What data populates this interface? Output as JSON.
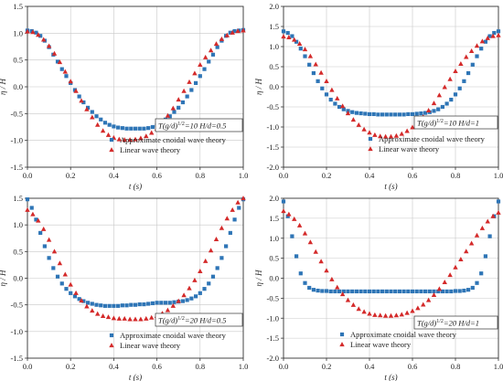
{
  "chart_data": [
    {
      "type": "scatter",
      "xlabel": "t (s)",
      "ylabel": "η / H",
      "xlim": [
        0.0,
        1.0
      ],
      "ylim": [
        -1.5,
        1.5
      ],
      "xticks": [
        "0.0",
        "0.2",
        "0.4",
        "0.6",
        "0.8",
        "1.0"
      ],
      "yticks": [
        "1.5",
        "1.0",
        "0.5",
        "0.0",
        "-0.5",
        "-1.0",
        "-1.5"
      ],
      "grid": true,
      "annotation": "T(g/d)1/2=10 H/d=0.5",
      "annotation_parts": [
        "T(g/d)",
        "1/2",
        "=10  H/d=0.5"
      ],
      "legend_position": "bottom-right",
      "series": [
        {
          "name": "Approximate cnoidal wave theory",
          "marker": "square",
          "color": "#2e75b6",
          "x": [
            0.0,
            0.02,
            0.04,
            0.06,
            0.08,
            0.1,
            0.12,
            0.14,
            0.16,
            0.18,
            0.2,
            0.22,
            0.24,
            0.26,
            0.28,
            0.3,
            0.32,
            0.34,
            0.36,
            0.38,
            0.4,
            0.42,
            0.44,
            0.46,
            0.48,
            0.5,
            0.52,
            0.54,
            0.56,
            0.58,
            0.6,
            0.62,
            0.64,
            0.66,
            0.68,
            0.7,
            0.72,
            0.74,
            0.76,
            0.78,
            0.8,
            0.82,
            0.84,
            0.86,
            0.88,
            0.9,
            0.92,
            0.94,
            0.96,
            0.98,
            1.0
          ],
          "y": [
            1.05,
            1.04,
            1.01,
            0.95,
            0.86,
            0.74,
            0.6,
            0.47,
            0.33,
            0.2,
            0.07,
            -0.06,
            -0.18,
            -0.29,
            -0.39,
            -0.47,
            -0.55,
            -0.61,
            -0.67,
            -0.71,
            -0.74,
            -0.76,
            -0.77,
            -0.78,
            -0.78,
            -0.78,
            -0.78,
            -0.78,
            -0.77,
            -0.75,
            -0.72,
            -0.67,
            -0.61,
            -0.55,
            -0.47,
            -0.39,
            -0.29,
            -0.18,
            -0.06,
            0.07,
            0.2,
            0.33,
            0.47,
            0.6,
            0.74,
            0.86,
            0.95,
            1.01,
            1.04,
            1.05,
            1.06
          ]
        },
        {
          "name": "Linear wave theory",
          "marker": "triangle",
          "color": "#d42a2a",
          "x": [
            0.0,
            0.025,
            0.05,
            0.075,
            0.1,
            0.125,
            0.15,
            0.175,
            0.2,
            0.225,
            0.25,
            0.275,
            0.3,
            0.325,
            0.35,
            0.375,
            0.4,
            0.425,
            0.45,
            0.475,
            0.5,
            0.525,
            0.55,
            0.575,
            0.6,
            0.625,
            0.65,
            0.675,
            0.7,
            0.725,
            0.75,
            0.775,
            0.8,
            0.825,
            0.85,
            0.875,
            0.9,
            0.925,
            0.95,
            0.975,
            1.0
          ],
          "y": [
            1.03,
            1.02,
            0.97,
            0.88,
            0.76,
            0.62,
            0.46,
            0.28,
            0.1,
            -0.08,
            -0.26,
            -0.42,
            -0.57,
            -0.71,
            -0.82,
            -0.9,
            -0.95,
            -0.98,
            -0.99,
            -0.99,
            -0.98,
            -0.96,
            -0.92,
            -0.86,
            -0.78,
            -0.67,
            -0.54,
            -0.4,
            -0.24,
            -0.08,
            0.09,
            0.25,
            0.41,
            0.55,
            0.68,
            0.8,
            0.89,
            0.96,
            1.01,
            1.04,
            1.05
          ]
        }
      ]
    },
    {
      "type": "scatter",
      "xlabel": "t (s)",
      "ylabel": "η / H",
      "xlim": [
        0.0,
        1.0
      ],
      "ylim": [
        -2.0,
        2.0
      ],
      "xticks": [
        "0.0",
        "0.2",
        "0.4",
        "0.6",
        "0.8",
        "1.0"
      ],
      "yticks": [
        "2.0",
        "1.5",
        "1.0",
        "0.5",
        "0.0",
        "-0.5",
        "-1.0",
        "-1.5",
        "-2.0"
      ],
      "grid": true,
      "annotation": "T(g/d)1/2=10 H/d=1",
      "annotation_parts": [
        "T(g/d)",
        "1/2",
        "=10  H/d=1"
      ],
      "legend_position": "bottom-right",
      "series": [
        {
          "name": "Approximate cnoidal wave theory",
          "marker": "square",
          "color": "#2e75b6",
          "x": [
            0.0,
            0.02,
            0.04,
            0.06,
            0.08,
            0.1,
            0.12,
            0.14,
            0.16,
            0.18,
            0.2,
            0.22,
            0.24,
            0.26,
            0.28,
            0.3,
            0.32,
            0.34,
            0.36,
            0.38,
            0.4,
            0.42,
            0.44,
            0.46,
            0.48,
            0.5,
            0.52,
            0.54,
            0.56,
            0.58,
            0.6,
            0.62,
            0.64,
            0.66,
            0.68,
            0.7,
            0.72,
            0.74,
            0.76,
            0.78,
            0.8,
            0.82,
            0.84,
            0.86,
            0.88,
            0.9,
            0.92,
            0.94,
            0.96,
            0.98,
            1.0
          ],
          "y": [
            1.38,
            1.34,
            1.26,
            1.12,
            0.95,
            0.76,
            0.55,
            0.34,
            0.14,
            -0.04,
            -0.19,
            -0.32,
            -0.42,
            -0.5,
            -0.56,
            -0.6,
            -0.63,
            -0.65,
            -0.66,
            -0.67,
            -0.68,
            -0.68,
            -0.69,
            -0.69,
            -0.69,
            -0.69,
            -0.69,
            -0.69,
            -0.69,
            -0.68,
            -0.68,
            -0.67,
            -0.66,
            -0.65,
            -0.63,
            -0.6,
            -0.56,
            -0.5,
            -0.42,
            -0.32,
            -0.19,
            -0.04,
            0.14,
            0.34,
            0.55,
            0.76,
            0.95,
            1.12,
            1.26,
            1.34,
            1.38
          ]
        },
        {
          "name": "Linear wave theory",
          "marker": "triangle",
          "color": "#d42a2a",
          "x": [
            0.0,
            0.025,
            0.05,
            0.075,
            0.1,
            0.125,
            0.15,
            0.175,
            0.2,
            0.225,
            0.25,
            0.275,
            0.3,
            0.325,
            0.35,
            0.375,
            0.4,
            0.425,
            0.45,
            0.475,
            0.5,
            0.525,
            0.55,
            0.575,
            0.6,
            0.625,
            0.65,
            0.675,
            0.7,
            0.725,
            0.75,
            0.775,
            0.8,
            0.825,
            0.85,
            0.875,
            0.9,
            0.925,
            0.95,
            0.975,
            1.0
          ],
          "y": [
            1.25,
            1.23,
            1.17,
            1.07,
            0.93,
            0.76,
            0.56,
            0.35,
            0.14,
            -0.08,
            -0.29,
            -0.48,
            -0.66,
            -0.82,
            -0.95,
            -1.06,
            -1.14,
            -1.2,
            -1.23,
            -1.24,
            -1.24,
            -1.22,
            -1.17,
            -1.1,
            -1.01,
            -0.89,
            -0.75,
            -0.59,
            -0.41,
            -0.21,
            -0.01,
            0.19,
            0.39,
            0.57,
            0.74,
            0.89,
            1.02,
            1.13,
            1.21,
            1.26,
            1.28
          ]
        }
      ]
    },
    {
      "type": "scatter",
      "xlabel": "t (s)",
      "ylabel": "η / H",
      "xlim": [
        0.0,
        1.0
      ],
      "ylim": [
        -1.5,
        1.5
      ],
      "xticks": [
        "0.0",
        "0.2",
        "0.4",
        "0.6",
        "0.8",
        "1.0"
      ],
      "yticks": [
        "1.5",
        "1.0",
        "0.5",
        "0.0",
        "-0.5",
        "-1.0",
        "-1.5"
      ],
      "grid": true,
      "annotation": "T(g/d)1/2=20 H/d=0.5",
      "annotation_parts": [
        "T(g/d)",
        "1/2",
        "=20  H/d=0.5"
      ],
      "legend_position": "bottom-right",
      "series": [
        {
          "name": "Approximate cnoidal wave theory",
          "marker": "square",
          "color": "#2e75b6",
          "x": [
            0.0,
            0.02,
            0.04,
            0.06,
            0.08,
            0.1,
            0.12,
            0.14,
            0.16,
            0.18,
            0.2,
            0.22,
            0.24,
            0.26,
            0.28,
            0.3,
            0.32,
            0.34,
            0.36,
            0.38,
            0.4,
            0.42,
            0.44,
            0.46,
            0.48,
            0.5,
            0.52,
            0.54,
            0.56,
            0.58,
            0.6,
            0.62,
            0.64,
            0.66,
            0.68,
            0.7,
            0.72,
            0.74,
            0.76,
            0.78,
            0.8,
            0.82,
            0.84,
            0.86,
            0.88,
            0.9,
            0.92,
            0.94,
            0.96,
            0.98,
            1.0
          ],
          "y": [
            1.48,
            1.32,
            1.1,
            0.85,
            0.6,
            0.38,
            0.19,
            0.03,
            -0.1,
            -0.2,
            -0.28,
            -0.34,
            -0.39,
            -0.43,
            -0.46,
            -0.48,
            -0.5,
            -0.51,
            -0.52,
            -0.52,
            -0.52,
            -0.52,
            -0.51,
            -0.51,
            -0.5,
            -0.5,
            -0.49,
            -0.49,
            -0.48,
            -0.47,
            -0.46,
            -0.46,
            -0.46,
            -0.46,
            -0.45,
            -0.44,
            -0.43,
            -0.41,
            -0.38,
            -0.34,
            -0.28,
            -0.2,
            -0.1,
            0.03,
            0.19,
            0.38,
            0.6,
            0.85,
            1.1,
            1.32,
            1.48
          ]
        },
        {
          "name": "Linear wave theory",
          "marker": "triangle",
          "color": "#d42a2a",
          "x": [
            0.0,
            0.025,
            0.05,
            0.075,
            0.1,
            0.125,
            0.15,
            0.175,
            0.2,
            0.225,
            0.25,
            0.275,
            0.3,
            0.325,
            0.35,
            0.375,
            0.4,
            0.425,
            0.45,
            0.475,
            0.5,
            0.525,
            0.55,
            0.575,
            0.6,
            0.625,
            0.65,
            0.675,
            0.7,
            0.725,
            0.75,
            0.775,
            0.8,
            0.825,
            0.85,
            0.875,
            0.9,
            0.925,
            0.95,
            0.975,
            1.0
          ],
          "y": [
            1.28,
            1.2,
            1.08,
            0.92,
            0.72,
            0.5,
            0.28,
            0.07,
            -0.12,
            -0.28,
            -0.42,
            -0.53,
            -0.61,
            -0.67,
            -0.71,
            -0.73,
            -0.75,
            -0.76,
            -0.76,
            -0.77,
            -0.77,
            -0.77,
            -0.76,
            -0.74,
            -0.71,
            -0.66,
            -0.6,
            -0.52,
            -0.43,
            -0.32,
            -0.19,
            -0.04,
            0.13,
            0.32,
            0.52,
            0.73,
            0.94,
            1.12,
            1.28,
            1.42,
            1.5
          ]
        }
      ]
    },
    {
      "type": "scatter",
      "xlabel": "t (s)",
      "ylabel": "η / H",
      "xlim": [
        0.0,
        1.0
      ],
      "ylim": [
        -2.0,
        2.0
      ],
      "xticks": [
        "0.0",
        "0.2",
        "0.4",
        "0.6",
        "0.8",
        "1.0"
      ],
      "yticks": [
        "2.0",
        "1.5",
        "1.0",
        "0.5",
        "0.0",
        "-0.5",
        "-1.0",
        "-1.5",
        "-2.0"
      ],
      "grid": true,
      "annotation": "T(g/d)1/2=20 H/d=1",
      "annotation_parts": [
        "T(g/d)",
        "1/2",
        "=20  H/d=1"
      ],
      "legend_position": "bottom-right",
      "series": [
        {
          "name": "Approximate cnoidal wave theory",
          "marker": "square",
          "color": "#2e75b6",
          "x": [
            0.0,
            0.02,
            0.04,
            0.06,
            0.08,
            0.1,
            0.12,
            0.14,
            0.16,
            0.18,
            0.2,
            0.22,
            0.24,
            0.26,
            0.28,
            0.3,
            0.32,
            0.34,
            0.36,
            0.38,
            0.4,
            0.42,
            0.44,
            0.46,
            0.48,
            0.5,
            0.52,
            0.54,
            0.56,
            0.58,
            0.6,
            0.62,
            0.64,
            0.66,
            0.68,
            0.7,
            0.72,
            0.74,
            0.76,
            0.78,
            0.8,
            0.82,
            0.84,
            0.86,
            0.88,
            0.9,
            0.92,
            0.94,
            0.96,
            0.98,
            1.0
          ],
          "y": [
            1.92,
            1.55,
            1.05,
            0.55,
            0.12,
            -0.12,
            -0.24,
            -0.29,
            -0.31,
            -0.32,
            -0.32,
            -0.33,
            -0.33,
            -0.33,
            -0.33,
            -0.33,
            -0.33,
            -0.33,
            -0.33,
            -0.33,
            -0.33,
            -0.33,
            -0.33,
            -0.33,
            -0.33,
            -0.33,
            -0.33,
            -0.33,
            -0.33,
            -0.33,
            -0.33,
            -0.33,
            -0.33,
            -0.33,
            -0.33,
            -0.33,
            -0.33,
            -0.33,
            -0.33,
            -0.33,
            -0.32,
            -0.32,
            -0.31,
            -0.29,
            -0.24,
            -0.12,
            0.12,
            0.55,
            1.05,
            1.55,
            1.92
          ]
        },
        {
          "name": "Linear wave theory",
          "marker": "triangle",
          "color": "#d42a2a",
          "x": [
            0.0,
            0.025,
            0.05,
            0.075,
            0.1,
            0.125,
            0.15,
            0.175,
            0.2,
            0.225,
            0.25,
            0.275,
            0.3,
            0.325,
            0.35,
            0.375,
            0.4,
            0.425,
            0.45,
            0.475,
            0.5,
            0.525,
            0.55,
            0.575,
            0.6,
            0.625,
            0.65,
            0.675,
            0.7,
            0.725,
            0.75,
            0.775,
            0.8,
            0.825,
            0.85,
            0.875,
            0.9,
            0.925,
            0.95,
            0.975,
            1.0
          ],
          "y": [
            1.68,
            1.6,
            1.48,
            1.32,
            1.12,
            0.9,
            0.66,
            0.42,
            0.19,
            -0.03,
            -0.23,
            -0.4,
            -0.55,
            -0.67,
            -0.77,
            -0.84,
            -0.89,
            -0.92,
            -0.93,
            -0.94,
            -0.94,
            -0.93,
            -0.91,
            -0.87,
            -0.82,
            -0.75,
            -0.66,
            -0.55,
            -0.42,
            -0.27,
            -0.1,
            0.08,
            0.27,
            0.47,
            0.67,
            0.87,
            1.07,
            1.25,
            1.42,
            1.55,
            1.64
          ]
        }
      ]
    }
  ]
}
